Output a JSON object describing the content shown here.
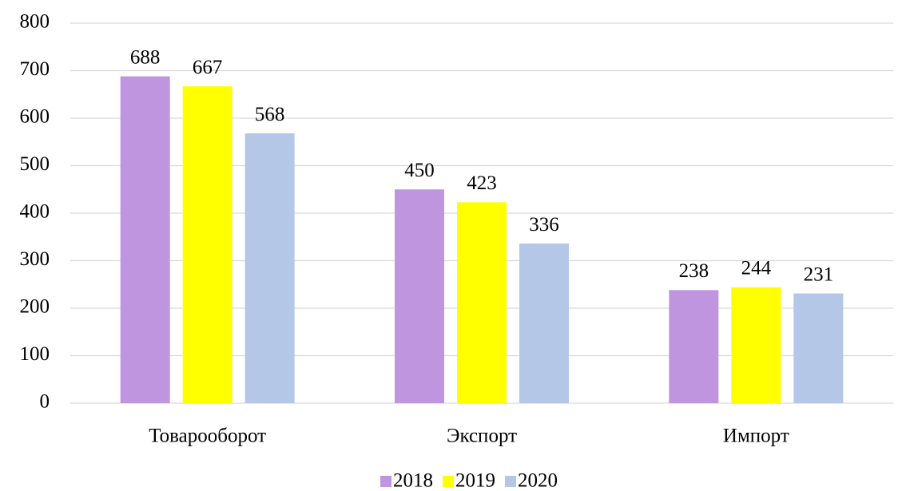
{
  "chart_data": {
    "type": "bar",
    "categories": [
      "Товарооборот",
      "Экспорт",
      "Импорт"
    ],
    "series": [
      {
        "name": "2018",
        "color": "#c095e0",
        "values": [
          688,
          450,
          238
        ]
      },
      {
        "name": "2019",
        "color": "#ffff00",
        "values": [
          667,
          423,
          244
        ]
      },
      {
        "name": "2020",
        "color": "#b4c7e7",
        "values": [
          568,
          336,
          231
        ]
      }
    ],
    "ylim": [
      0,
      800
    ],
    "yticks": [
      0,
      100,
      200,
      300,
      400,
      500,
      600,
      700,
      800
    ],
    "grid": true,
    "legend": "bottom"
  }
}
